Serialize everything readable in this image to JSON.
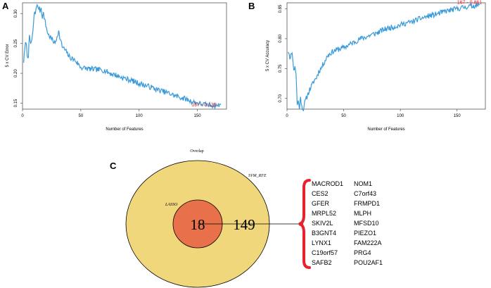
{
  "panel_labels": [
    "A",
    "B",
    "C"
  ],
  "chart_data": [
    {
      "type": "line",
      "panel": "A",
      "title": "",
      "xlabel": "Number of Features",
      "ylabel": "5 x CV Error",
      "xlim": [
        0,
        175
      ],
      "ylim": [
        0.14,
        0.318
      ],
      "xticks": [
        0,
        50,
        100,
        150
      ],
      "yticks": [
        0.15,
        0.2,
        0.25,
        0.3
      ],
      "xtick_labels": [
        "0",
        "50",
        "100",
        "150"
      ],
      "ytick_labels": [
        "0.15",
        "0.20",
        "0.25",
        "0.30"
      ],
      "series_color": "#3a9ad9",
      "anchors": [
        [
          1,
          0.22
        ],
        [
          2,
          0.24
        ],
        [
          3,
          0.255
        ],
        [
          4,
          0.23
        ],
        [
          5,
          0.23
        ],
        [
          6,
          0.26
        ],
        [
          7,
          0.25
        ],
        [
          8,
          0.255
        ],
        [
          9,
          0.27
        ],
        [
          10,
          0.3
        ],
        [
          11,
          0.3
        ],
        [
          12,
          0.315
        ],
        [
          13,
          0.31
        ],
        [
          14,
          0.31
        ],
        [
          15,
          0.305
        ],
        [
          16,
          0.31
        ],
        [
          17,
          0.295
        ],
        [
          18,
          0.3
        ],
        [
          19,
          0.29
        ],
        [
          20,
          0.28
        ],
        [
          22,
          0.265
        ],
        [
          24,
          0.26
        ],
        [
          26,
          0.255
        ],
        [
          28,
          0.25
        ],
        [
          30,
          0.265
        ],
        [
          31,
          0.27
        ],
        [
          32,
          0.26
        ],
        [
          34,
          0.245
        ],
        [
          36,
          0.24
        ],
        [
          38,
          0.235
        ],
        [
          40,
          0.228
        ],
        [
          42,
          0.225
        ],
        [
          45,
          0.222
        ],
        [
          48,
          0.215
        ],
        [
          50,
          0.21
        ],
        [
          55,
          0.208
        ],
        [
          60,
          0.207
        ],
        [
          65,
          0.206
        ],
        [
          70,
          0.205
        ],
        [
          75,
          0.2
        ],
        [
          80,
          0.197
        ],
        [
          85,
          0.193
        ],
        [
          90,
          0.19
        ],
        [
          95,
          0.187
        ],
        [
          100,
          0.183
        ],
        [
          105,
          0.18
        ],
        [
          110,
          0.177
        ],
        [
          115,
          0.173
        ],
        [
          120,
          0.17
        ],
        [
          125,
          0.167
        ],
        [
          130,
          0.163
        ],
        [
          135,
          0.16
        ],
        [
          140,
          0.157
        ],
        [
          145,
          0.153
        ],
        [
          150,
          0.15
        ],
        [
          155,
          0.148
        ],
        [
          160,
          0.147
        ],
        [
          165,
          0.146
        ],
        [
          167,
          0.146
        ],
        [
          170,
          0.147
        ]
      ],
      "seed": 7,
      "noise": 0.0045,
      "annotation": {
        "text": "167 - 0.139",
        "x": 145,
        "y": 0.1445,
        "color": "#e8212b"
      }
    },
    {
      "type": "line",
      "panel": "B",
      "title": "",
      "xlabel": "Number of Features",
      "ylabel": "5 x CV Accuracy",
      "xlim": [
        0,
        175
      ],
      "ylim": [
        0.682,
        0.86
      ],
      "xticks": [
        0,
        50,
        100,
        150
      ],
      "yticks": [
        0.7,
        0.75,
        0.8,
        0.85
      ],
      "xtick_labels": [
        "0",
        "50",
        "100",
        "150"
      ],
      "ytick_labels": [
        "0.70",
        "0.75",
        "0.80",
        "0.85"
      ],
      "series_color": "#3a9ad9",
      "anchors": [
        [
          1,
          0.78
        ],
        [
          2,
          0.775
        ],
        [
          3,
          0.765
        ],
        [
          4,
          0.778
        ],
        [
          5,
          0.77
        ],
        [
          6,
          0.745
        ],
        [
          7,
          0.755
        ],
        [
          8,
          0.74
        ],
        [
          9,
          0.69
        ],
        [
          10,
          0.695
        ],
        [
          11,
          0.685
        ],
        [
          12,
          0.7
        ],
        [
          13,
          0.69
        ],
        [
          14,
          0.68
        ],
        [
          16,
          0.695
        ],
        [
          18,
          0.705
        ],
        [
          20,
          0.715
        ],
        [
          22,
          0.722
        ],
        [
          24,
          0.73
        ],
        [
          26,
          0.735
        ],
        [
          28,
          0.745
        ],
        [
          30,
          0.75
        ],
        [
          32,
          0.758
        ],
        [
          34,
          0.765
        ],
        [
          36,
          0.772
        ],
        [
          38,
          0.775
        ],
        [
          40,
          0.778
        ],
        [
          42,
          0.78
        ],
        [
          45,
          0.782
        ],
        [
          50,
          0.785
        ],
        [
          55,
          0.79
        ],
        [
          60,
          0.795
        ],
        [
          65,
          0.8
        ],
        [
          70,
          0.803
        ],
        [
          75,
          0.807
        ],
        [
          80,
          0.81
        ],
        [
          85,
          0.815
        ],
        [
          90,
          0.818
        ],
        [
          95,
          0.82
        ],
        [
          100,
          0.823
        ],
        [
          105,
          0.826
        ],
        [
          110,
          0.828
        ],
        [
          115,
          0.832
        ],
        [
          120,
          0.835
        ],
        [
          125,
          0.838
        ],
        [
          130,
          0.84
        ],
        [
          135,
          0.843
        ],
        [
          140,
          0.846
        ],
        [
          145,
          0.848
        ],
        [
          150,
          0.85
        ],
        [
          155,
          0.852
        ],
        [
          160,
          0.854
        ],
        [
          165,
          0.855
        ],
        [
          167,
          0.856
        ],
        [
          170,
          0.855
        ]
      ],
      "seed": 11,
      "noise": 0.0045,
      "annotation": {
        "text": "167 - 0.861",
        "x": 150,
        "y": 0.858,
        "color": "#e8212b"
      }
    },
    {
      "type": "venn",
      "panel": "C",
      "title": "Overlap",
      "sets": [
        {
          "name": "SVM_RFE",
          "only": 149,
          "color": "#f1d77c"
        },
        {
          "name": "LASSO",
          "only": 0,
          "color": "#e8704a"
        }
      ],
      "intersection": 18,
      "overlap_genes": [
        [
          "MACROD1",
          "NOM1"
        ],
        [
          "CES2",
          "C7orf43"
        ],
        [
          "GFER",
          "FRMPD1"
        ],
        [
          "MRPL52",
          "MLPH"
        ],
        [
          "SKIV2L",
          "MFSD10"
        ],
        [
          "B3GNT4",
          "PIEZO1"
        ],
        [
          "LYNX1",
          "FAM222A"
        ],
        [
          "C19orf57",
          "PRG4"
        ],
        [
          "SAFB2",
          "POU2AF1"
        ]
      ],
      "brace_color": "#e8212b"
    }
  ]
}
